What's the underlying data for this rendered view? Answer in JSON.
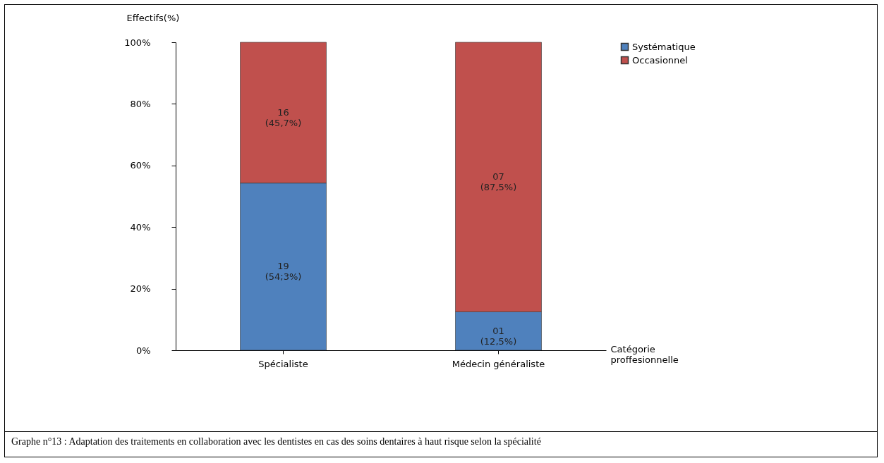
{
  "chart_data": {
    "type": "bar",
    "stacked": true,
    "categories": [
      "Spécialiste",
      "Médecin généraliste"
    ],
    "series": [
      {
        "name": "Systématique",
        "color": "#4f81bd",
        "values": [
          54.3,
          12.5
        ],
        "value_labels": [
          "19\n(54;3%)",
          "01\n(12,5%)"
        ]
      },
      {
        "name": "Occasionnel",
        "color": "#c0504d",
        "values": [
          45.7,
          87.5
        ],
        "value_labels": [
          "16\n(45,7%)",
          "07\n(87,5%)"
        ]
      }
    ],
    "ylim": [
      0,
      100
    ],
    "yticks": [
      {
        "value": 0,
        "label": "0%"
      },
      {
        "value": 20,
        "label": "20%"
      },
      {
        "value": 40,
        "label": "40%"
      },
      {
        "value": 60,
        "label": "60%"
      },
      {
        "value": 80,
        "label": "80%"
      },
      {
        "value": 100,
        "label": "100%"
      }
    ],
    "ylabel": "Effectifs(%)",
    "xlabel": "Catégorie proffesionnelle",
    "legend": "right",
    "grid": false,
    "annotations": [
      "Graphe n°13 : Adaptation des traitements en collaboration avec les dentistes en cas des soins dentaires  à haut risque selon la spécialité"
    ]
  }
}
